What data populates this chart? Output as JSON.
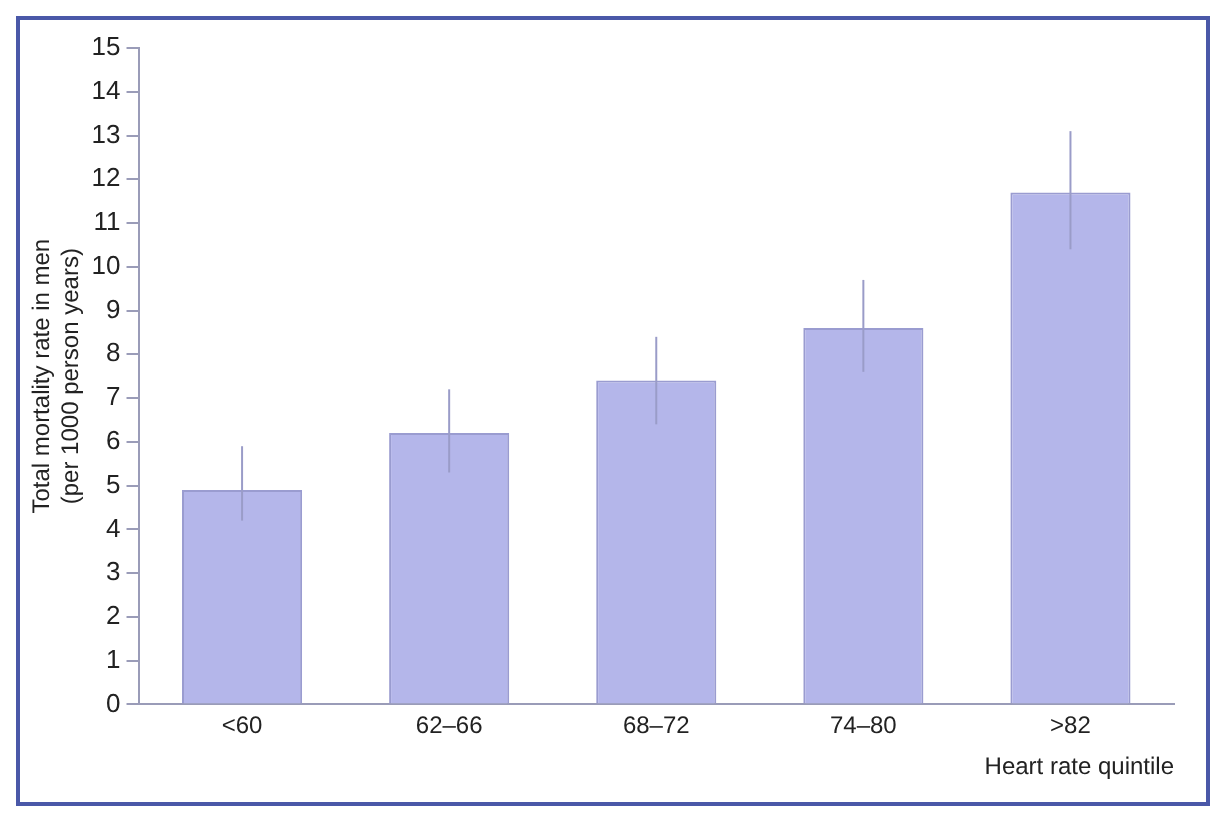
{
  "chart_data": {
    "type": "bar",
    "xlabel": "Heart rate quintile",
    "ylabel": "Total mortality rate in men\n(per 1000 person years)",
    "categories": [
      "<60",
      "62–66",
      "68–72",
      "74–80",
      ">82"
    ],
    "values": [
      4.9,
      6.2,
      7.4,
      8.6,
      11.7
    ],
    "errors": [
      [
        4.2,
        5.9
      ],
      [
        5.3,
        7.2
      ],
      [
        6.4,
        8.4
      ],
      [
        7.6,
        9.7
      ],
      [
        10.4,
        13.1
      ]
    ],
    "color": "#b4b6ea",
    "ylim": [
      0,
      15
    ],
    "yticks": [
      0,
      1,
      2,
      3,
      4,
      5,
      6,
      7,
      8,
      9,
      10,
      11,
      12,
      13,
      14,
      15
    ],
    "grid": false,
    "legend": false
  }
}
